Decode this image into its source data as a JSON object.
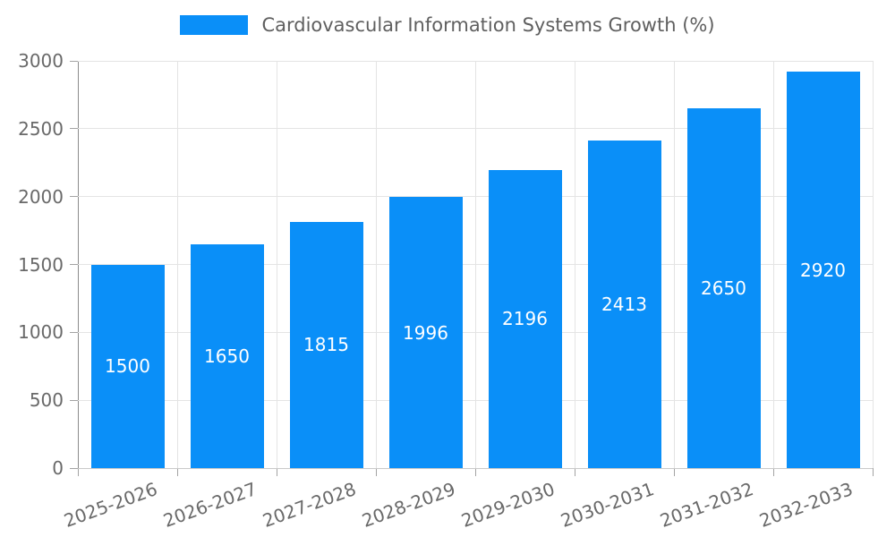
{
  "colors": {
    "bar": "#0a8ff8",
    "grid": "#e4e4e4",
    "axis_line": "#8c8c8c",
    "bottom_line": "#c9c9c9",
    "tick_mark": "#a3a3a3",
    "tick_text": "#696969",
    "legend_text": "#5f5f5f",
    "value_text": "#ffffff",
    "background": "#ffffff"
  },
  "legend": {
    "label": "Cardiovascular Information Systems Growth (%)"
  },
  "chart_data": {
    "type": "bar",
    "title": "Cardiovascular Information Systems Growth (%)",
    "categories": [
      "2025-2026",
      "2026-2027",
      "2027-2028",
      "2028-2029",
      "2029-2030",
      "2030-2031",
      "2031-2032",
      "2032-2033"
    ],
    "values": [
      1500,
      1650,
      1815,
      1996,
      2196,
      2413,
      2650,
      2920
    ],
    "xlabel": "",
    "ylabel": "",
    "ylim": [
      0,
      3000
    ],
    "yticks": [
      0,
      500,
      1000,
      1500,
      2000,
      2500,
      3000
    ],
    "grid": true,
    "grid_orientation": "both",
    "legend_position": "top-center",
    "value_label_position": "inside-center",
    "x_tick_rotation_deg": -20
  }
}
